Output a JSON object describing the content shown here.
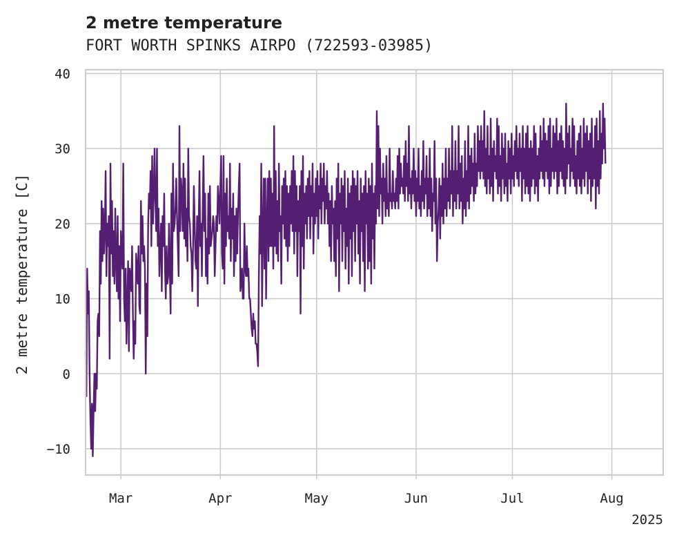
{
  "chart_data": {
    "type": "line",
    "title": "2 metre temperature",
    "subtitle": "FORT WORTH SPINKS AIRPO (722593-03985)",
    "ylabel": "2 metre temperature [C]",
    "xlabel": "",
    "x_tick_labels": [
      "Mar",
      "Apr",
      "May",
      "Jun",
      "Jul",
      "Aug"
    ],
    "x_tick_dates": [
      "2025-03-01",
      "2025-04-01",
      "2025-05-01",
      "2025-06-01",
      "2025-07-01",
      "2025-08-01"
    ],
    "x_offset_label": "2025",
    "xlim": [
      "2025-02-18",
      "2025-08-17"
    ],
    "y_ticks": [
      -10,
      0,
      10,
      20,
      30,
      40
    ],
    "y_tick_labels": [
      "−10",
      "0",
      "10",
      "20",
      "30",
      "40"
    ],
    "ylim": [
      -13.5,
      40.5
    ],
    "grid": true,
    "series": [
      {
        "color": "#541f72",
        "x_start": "2025-02-18",
        "x_step_hours": 6,
        "values": [
          3,
          -3,
          14,
          8,
          11,
          0,
          -6,
          -10,
          -4,
          -11,
          -5,
          0,
          -5,
          0,
          -2,
          7,
          8,
          5,
          19,
          12,
          23,
          15,
          22,
          16,
          19,
          27,
          13,
          20,
          17,
          21,
          2,
          28,
          16,
          23,
          13,
          19,
          12,
          22,
          15,
          11,
          21,
          10,
          17,
          7,
          19,
          16,
          14,
          28,
          10,
          7,
          14,
          4,
          9,
          15,
          3,
          14,
          13,
          11,
          17,
          8,
          2,
          7,
          4,
          16,
          14,
          12,
          17,
          9,
          8,
          23,
          16,
          21,
          15,
          17,
          14,
          0,
          12,
          5,
          20,
          24,
          22,
          27,
          17,
          29,
          20,
          24,
          30,
          23,
          19,
          30,
          17,
          22,
          13,
          17,
          20,
          11,
          21,
          17,
          24,
          14,
          10,
          17,
          12,
          13,
          20,
          14,
          8,
          24,
          12,
          28,
          19,
          20,
          22,
          26,
          21,
          17,
          13,
          33,
          19,
          26,
          24,
          19,
          28,
          18,
          26,
          17,
          22,
          15,
          30,
          21,
          20,
          17,
          16,
          11,
          17,
          25,
          20,
          15,
          14,
          21,
          9,
          20,
          27,
          17,
          20,
          13,
          22,
          29,
          19,
          24,
          13,
          18,
          12,
          24,
          16,
          25,
          17,
          18,
          19,
          21,
          20,
          13,
          17,
          21,
          19,
          25,
          23,
          20,
          25,
          29,
          16,
          14,
          29,
          12,
          24,
          17,
          26,
          19,
          21,
          18,
          28,
          15,
          22,
          18,
          24,
          13,
          21,
          15,
          22,
          16,
          21,
          25,
          28,
          11,
          12,
          14,
          10,
          10,
          20,
          14,
          13,
          17,
          13,
          14,
          10,
          10,
          8,
          6,
          5,
          8,
          6,
          7,
          4,
          4,
          3,
          1,
          13,
          21,
          16,
          28,
          9,
          19,
          26,
          14,
          26,
          10,
          20,
          26,
          15,
          27,
          17,
          26,
          17,
          24,
          14,
          33,
          17,
          27,
          16,
          23,
          15,
          28,
          19,
          21,
          12,
          25,
          20,
          26,
          18,
          27,
          17,
          25,
          15,
          24,
          17,
          25,
          20,
          27,
          19,
          29,
          16,
          27,
          19,
          25,
          13,
          23,
          19,
          25,
          8,
          27,
          17,
          29,
          14,
          24,
          20,
          25,
          18,
          26,
          21,
          27,
          18,
          25,
          21,
          28,
          16,
          24,
          20,
          26,
          21,
          27,
          18,
          25,
          22,
          28,
          20,
          26,
          23,
          28,
          20,
          25,
          22,
          27,
          20,
          24,
          17,
          23,
          15,
          25,
          20,
          22,
          15,
          23,
          13,
          26,
          18,
          28,
          11,
          24,
          20,
          26,
          15,
          25,
          19,
          27,
          14,
          22,
          17,
          26,
          12,
          24,
          18,
          25,
          13,
          27,
          19,
          26,
          15,
          25,
          20,
          27,
          16,
          23,
          12,
          26,
          19,
          24,
          15,
          25,
          11,
          27,
          20,
          24,
          14,
          26,
          15,
          25,
          12,
          28,
          18,
          24,
          14,
          25,
          20,
          35,
          22,
          33,
          21,
          30,
          24,
          26,
          20,
          28,
          23,
          26,
          21,
          29,
          22,
          24,
          21,
          30,
          23,
          24,
          22,
          27,
          23,
          24,
          22,
          26,
          23,
          29,
          22,
          30,
          24,
          28,
          25,
          26,
          24,
          29,
          23,
          31,
          25,
          28,
          23,
          33,
          24,
          26,
          22,
          27,
          24,
          30,
          23,
          27,
          21,
          26,
          23,
          30,
          22,
          25,
          21,
          27,
          23,
          31,
          22,
          26,
          24,
          29,
          21,
          26,
          22,
          30,
          21,
          26,
          19,
          24,
          23,
          31,
          20,
          26,
          15,
          20,
          22,
          26,
          18,
          25,
          21,
          28,
          20,
          26,
          22,
          30,
          21,
          26,
          23,
          30,
          22,
          27,
          24,
          33,
          21,
          27,
          23,
          31,
          22,
          27,
          24,
          33,
          22,
          28,
          23,
          29,
          20,
          26,
          22,
          31,
          21,
          27,
          23,
          33,
          22,
          29,
          24,
          30,
          25,
          28,
          23,
          32,
          24,
          28,
          25,
          33,
          27,
          31,
          26,
          33,
          27,
          31,
          26,
          35,
          25,
          30,
          24,
          33,
          26,
          29,
          24,
          34,
          25,
          30,
          23,
          31,
          27,
          29,
          26,
          34,
          24,
          33,
          25,
          29,
          23,
          32,
          26,
          30,
          24,
          32,
          25,
          28,
          23,
          31,
          26,
          30,
          24,
          32,
          26,
          29,
          25,
          31,
          27,
          33,
          26,
          30,
          25,
          32,
          27,
          30,
          23,
          33,
          26,
          30,
          24,
          32,
          25,
          33,
          24,
          30,
          23,
          31,
          25,
          30,
          26,
          33,
          24,
          32,
          25,
          29,
          23,
          30,
          26,
          33,
          27,
          31,
          26,
          34,
          25,
          32,
          27,
          31,
          26,
          33,
          24,
          34,
          25,
          30,
          27,
          33,
          26,
          32,
          27,
          34,
          24,
          31,
          25,
          32,
          27,
          33,
          26,
          31,
          25,
          30,
          24,
          36,
          26,
          32,
          28,
          33,
          25,
          30,
          27,
          34,
          26,
          33,
          25,
          29,
          24,
          31,
          26,
          32,
          25,
          33,
          24,
          30,
          26,
          34,
          25,
          32,
          27,
          33,
          24,
          31,
          26,
          32,
          23,
          34,
          25,
          30,
          26,
          33,
          22,
          34,
          25,
          31,
          24,
          35,
          26,
          32,
          28,
          36,
          30,
          34,
          28
        ]
      }
    ]
  }
}
